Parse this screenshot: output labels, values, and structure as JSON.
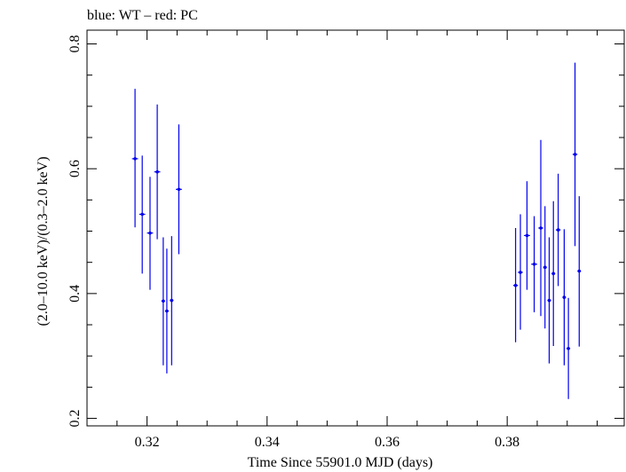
{
  "header": {
    "note": "blue: WT – red: PC"
  },
  "colors": {
    "wt": "#0000ee",
    "frame": "#000000"
  },
  "chart_data": {
    "type": "scatter",
    "title": "",
    "xlabel": "Time Since 55901.0 MJD (days)",
    "ylabel": "(2.0–10.0 keV)/(0.3–2.0 keV)",
    "xlim": [
      0.31,
      0.3995
    ],
    "ylim": [
      0.188,
      0.822
    ],
    "x_ticks": [
      0.32,
      0.34,
      0.36,
      0.38
    ],
    "x_tick_labels": [
      "0.32",
      "0.34",
      "0.36",
      "0.38"
    ],
    "y_ticks": [
      0.2,
      0.4,
      0.6,
      0.8
    ],
    "y_tick_labels": [
      "0.2",
      "0.4",
      "0.6",
      "0.8"
    ],
    "grid": false,
    "series": [
      {
        "color": "#0000ee",
        "points": [
          {
            "x": 0.318,
            "xerr": 0.0005,
            "y": 0.616,
            "ylo": 0.506,
            "yhi": 0.728
          },
          {
            "x": 0.3192,
            "xerr": 0.0005,
            "y": 0.527,
            "ylo": 0.432,
            "yhi": 0.621
          },
          {
            "x": 0.3205,
            "xerr": 0.0005,
            "y": 0.497,
            "ylo": 0.406,
            "yhi": 0.587
          },
          {
            "x": 0.3217,
            "xerr": 0.0005,
            "y": 0.595,
            "ylo": 0.487,
            "yhi": 0.703
          },
          {
            "x": 0.3227,
            "xerr": 0.0003,
            "y": 0.388,
            "ylo": 0.285,
            "yhi": 0.49
          },
          {
            "x": 0.3233,
            "xerr": 0.0003,
            "y": 0.372,
            "ylo": 0.272,
            "yhi": 0.472
          },
          {
            "x": 0.3241,
            "xerr": 0.0003,
            "y": 0.389,
            "ylo": 0.285,
            "yhi": 0.492
          },
          {
            "x": 0.3253,
            "xerr": 0.0005,
            "y": 0.567,
            "ylo": 0.463,
            "yhi": 0.671
          },
          {
            "x": 0.3814,
            "xerr": 0.0004,
            "y": 0.413,
            "ylo": 0.322,
            "yhi": 0.505
          },
          {
            "x": 0.3822,
            "xerr": 0.0004,
            "y": 0.434,
            "ylo": 0.342,
            "yhi": 0.527
          },
          {
            "x": 0.3833,
            "xerr": 0.0005,
            "y": 0.493,
            "ylo": 0.406,
            "yhi": 0.58
          },
          {
            "x": 0.3845,
            "xerr": 0.0005,
            "y": 0.447,
            "ylo": 0.37,
            "yhi": 0.524
          },
          {
            "x": 0.3856,
            "xerr": 0.0004,
            "y": 0.505,
            "ylo": 0.364,
            "yhi": 0.646
          },
          {
            "x": 0.3863,
            "xerr": 0.0003,
            "y": 0.442,
            "ylo": 0.344,
            "yhi": 0.54
          },
          {
            "x": 0.387,
            "xerr": 0.0003,
            "y": 0.389,
            "ylo": 0.288,
            "yhi": 0.49
          },
          {
            "x": 0.3877,
            "xerr": 0.0003,
            "y": 0.432,
            "ylo": 0.316,
            "yhi": 0.548
          },
          {
            "x": 0.3885,
            "xerr": 0.0004,
            "y": 0.502,
            "ylo": 0.412,
            "yhi": 0.592
          },
          {
            "x": 0.3895,
            "xerr": 0.0003,
            "y": 0.394,
            "ylo": 0.285,
            "yhi": 0.503
          },
          {
            "x": 0.3902,
            "xerr": 0.0003,
            "y": 0.312,
            "ylo": 0.231,
            "yhi": 0.393
          },
          {
            "x": 0.3913,
            "xerr": 0.0004,
            "y": 0.623,
            "ylo": 0.476,
            "yhi": 0.77
          },
          {
            "x": 0.392,
            "xerr": 0.0003,
            "y": 0.436,
            "ylo": 0.315,
            "yhi": 0.556
          }
        ]
      }
    ]
  }
}
